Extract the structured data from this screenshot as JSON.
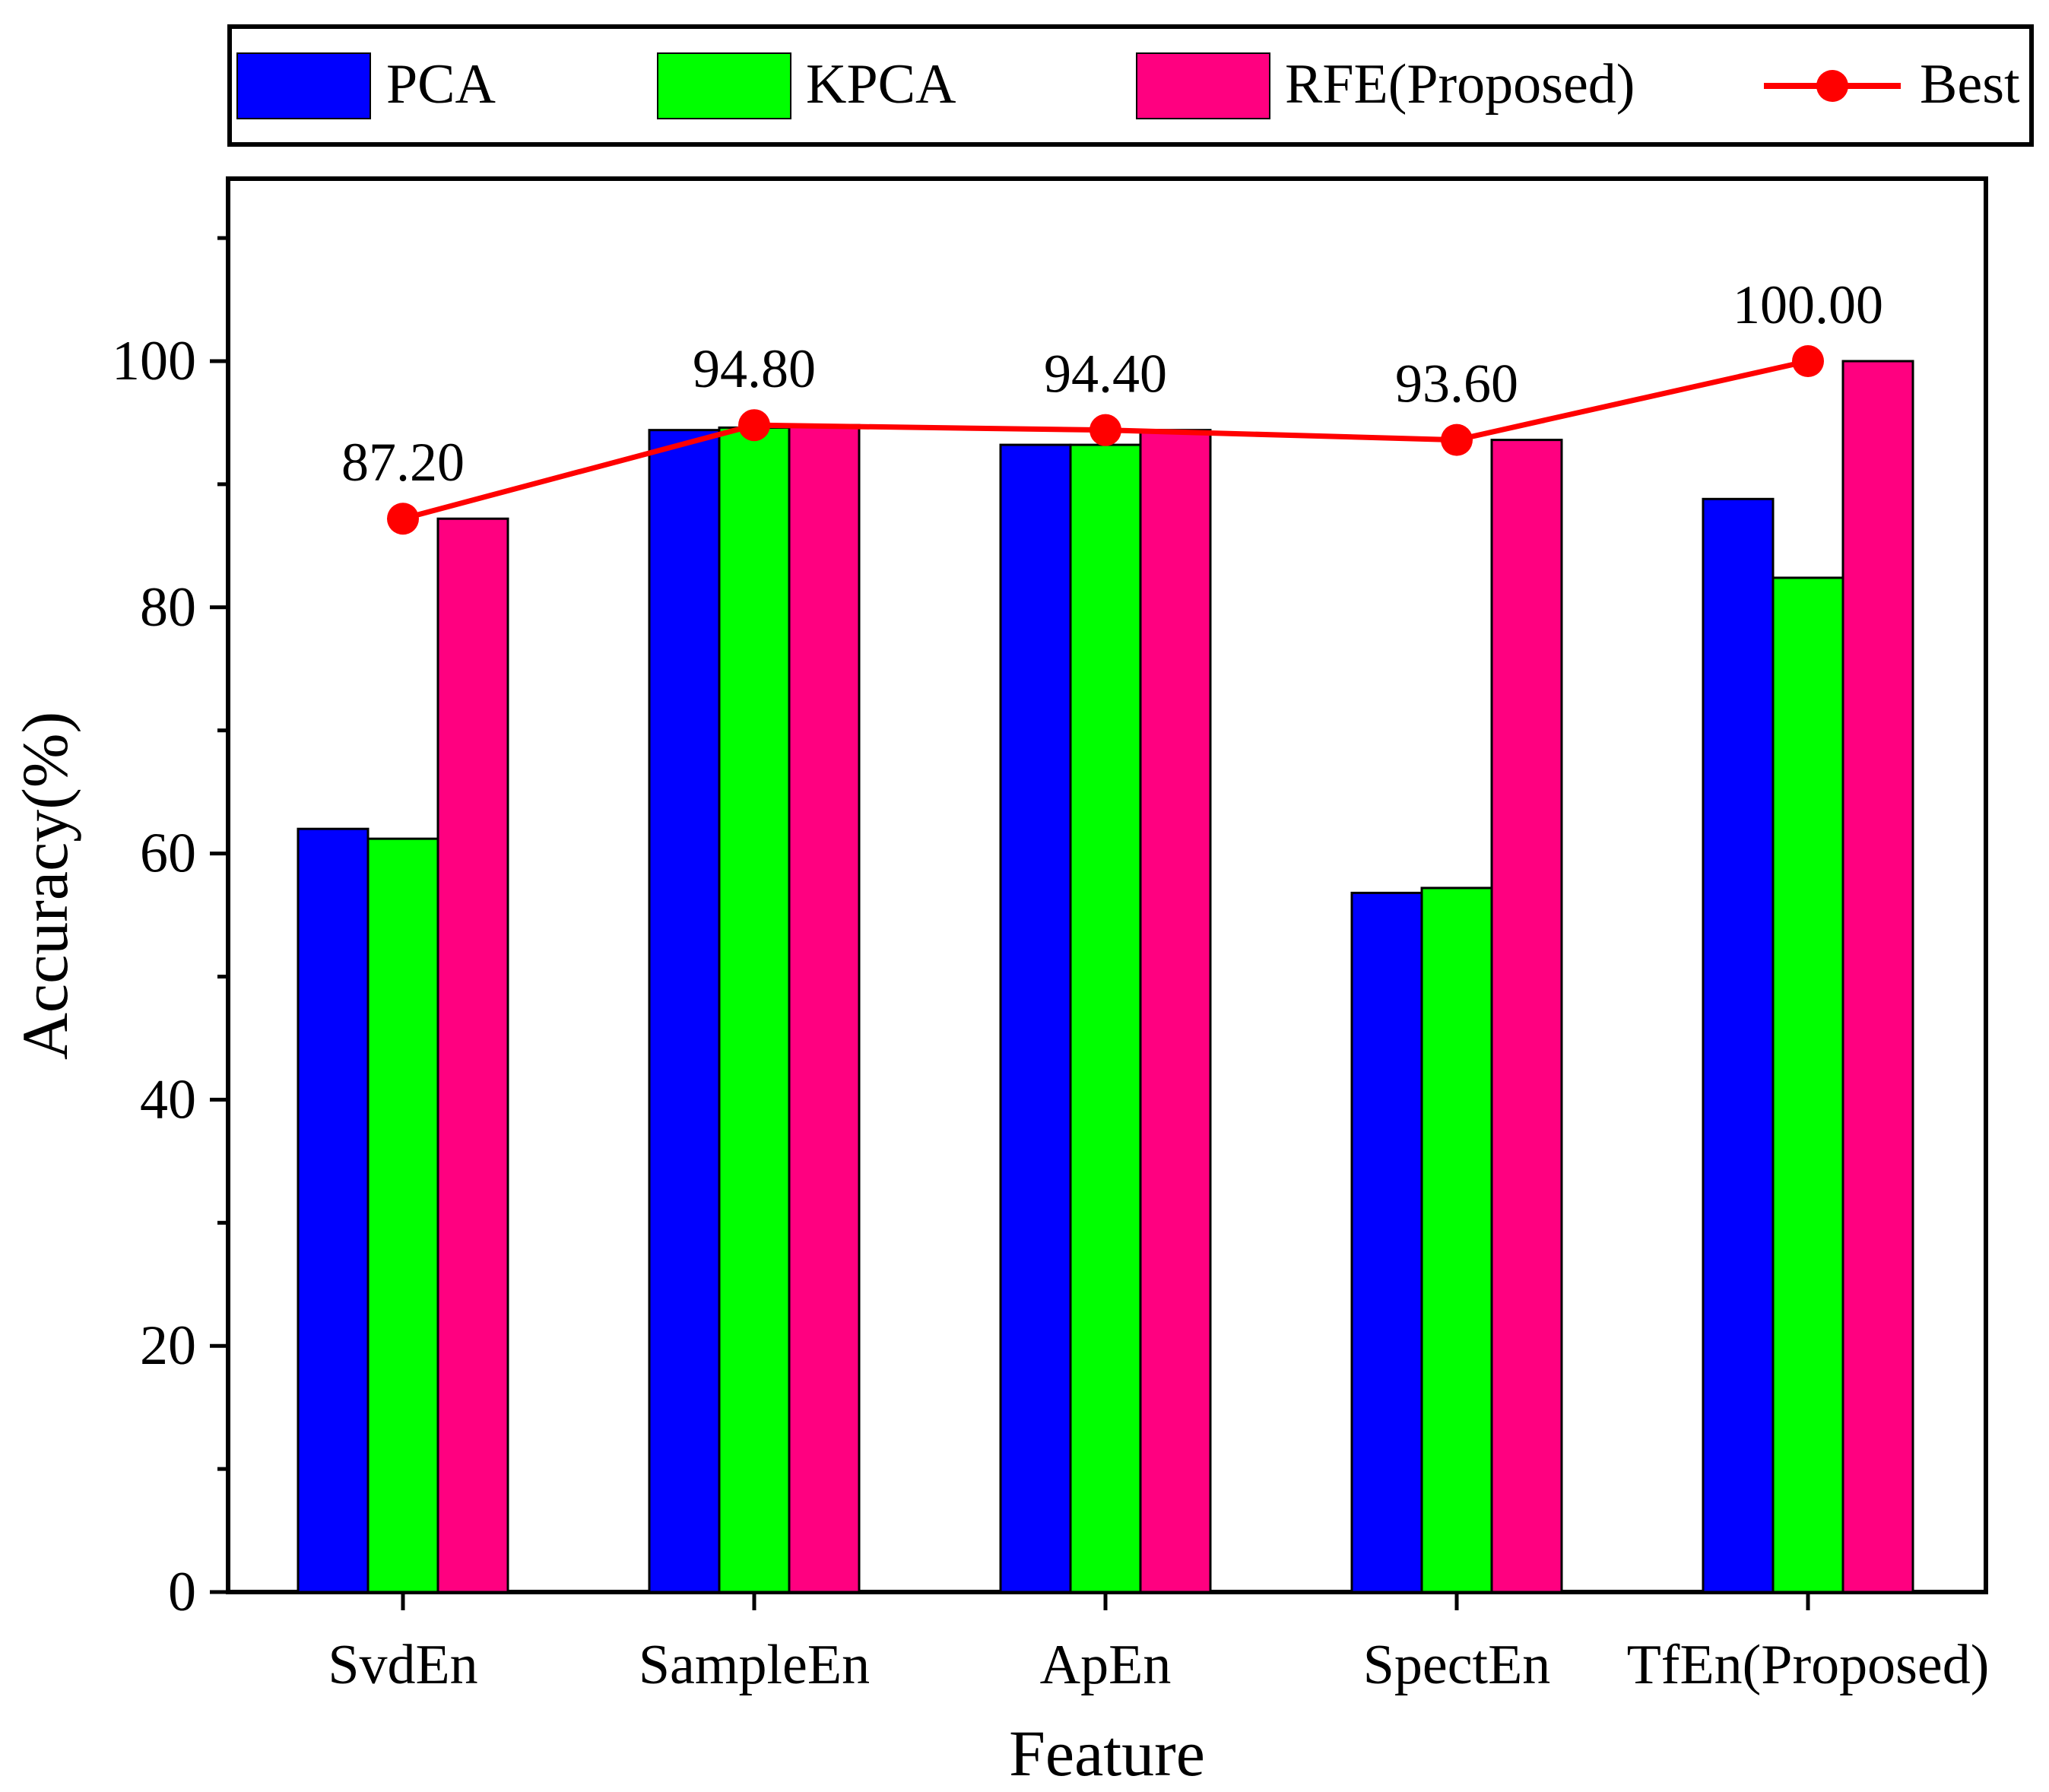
{
  "chart_data": {
    "type": "bar",
    "title": "",
    "xlabel": "Feature",
    "ylabel": "Accuracy(%)",
    "ylim": [
      0,
      115
    ],
    "yticks": [
      0,
      20,
      40,
      60,
      80,
      100
    ],
    "ytick_labels": [
      "0",
      "20",
      "40",
      "60",
      "80",
      "100"
    ],
    "y_minor_step": 10,
    "grid": false,
    "legend_position": "top",
    "categories": [
      "SvdEn",
      "SampleEn",
      "ApEn",
      "SpectEn",
      "TfEn(Proposed)"
    ],
    "series": [
      {
        "name": "PCA",
        "color": "#0000ff",
        "values": [
          62.0,
          94.4,
          93.2,
          56.8,
          88.8
        ]
      },
      {
        "name": "KPCA",
        "color": "#00ff00",
        "values": [
          61.2,
          94.6,
          93.2,
          57.2,
          82.4
        ]
      },
      {
        "name": "RFE(Proposed)",
        "color": "#ff0080",
        "values": [
          87.2,
          94.8,
          94.4,
          93.6,
          100.0
        ]
      }
    ],
    "line_series": {
      "name": "Best",
      "color": "#ff0000",
      "values": [
        87.2,
        94.8,
        94.4,
        93.6,
        100.0
      ],
      "labels": [
        "87.20",
        "94.80",
        "94.40",
        "93.60",
        "100.00"
      ]
    }
  }
}
